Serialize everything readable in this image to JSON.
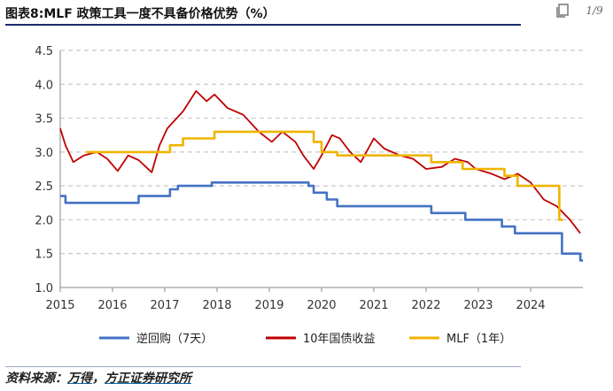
{
  "header": {
    "title": "图表8:MLF 政策工具一度不具备价格优势（%）"
  },
  "reader": {
    "page_indicator": "1/9"
  },
  "footer": {
    "source_label": "资料来源：",
    "source_wind": "万得",
    "source_sep": "，",
    "source_broker": "方正证券研究所"
  },
  "colors": {
    "reverse_repo": "#4472c4",
    "bond_10y": "#c00000",
    "mlf": "#f0b400",
    "grid": "#c8c8c8",
    "title_rule": "#1a2c6b"
  },
  "chart_data": {
    "type": "line",
    "title": "",
    "xlabel": "",
    "ylabel": "",
    "xlim": [
      2015.0,
      2025.0
    ],
    "ylim": [
      1.0,
      4.5
    ],
    "yticks": [
      1.0,
      1.5,
      2.0,
      2.5,
      3.0,
      3.5,
      4.0,
      4.5
    ],
    "ytick_labels": [
      "1.0",
      "1.5",
      "2.0",
      "2.5",
      "3.0",
      "3.5",
      "4.0",
      "4.5"
    ],
    "xticks": [
      2015,
      2016,
      2017,
      2018,
      2019,
      2020,
      2021,
      2022,
      2023,
      2024
    ],
    "xtick_labels": [
      "2015",
      "2016",
      "2017",
      "2018",
      "2019",
      "2020",
      "2021",
      "2022",
      "2023",
      "2024"
    ],
    "grid": "horizontal dashed",
    "legend": "bottom",
    "series": [
      {
        "name": "逆回购（7天）",
        "step": true,
        "x": [
          2015.0,
          2015.1,
          2016.4,
          2016.5,
          2017.1,
          2017.25,
          2017.9,
          2019.0,
          2019.75,
          2019.85,
          2020.1,
          2020.3,
          2022.1,
          2022.75,
          2023.45,
          2023.7,
          2024.1,
          2024.6,
          2024.95
        ],
        "values": [
          2.35,
          2.25,
          2.25,
          2.35,
          2.45,
          2.5,
          2.55,
          2.55,
          2.5,
          2.4,
          2.3,
          2.2,
          2.1,
          2.0,
          1.9,
          1.8,
          1.8,
          1.5,
          1.4
        ]
      },
      {
        "name": "10年国债收益",
        "step": false,
        "x": [
          2015.0,
          2015.1,
          2015.25,
          2015.45,
          2015.7,
          2015.9,
          2016.1,
          2016.3,
          2016.5,
          2016.75,
          2016.9,
          2017.05,
          2017.35,
          2017.6,
          2017.8,
          2017.95,
          2018.2,
          2018.5,
          2018.8,
          2019.05,
          2019.25,
          2019.5,
          2019.65,
          2019.85,
          2020.0,
          2020.2,
          2020.35,
          2020.55,
          2020.75,
          2021.0,
          2021.2,
          2021.5,
          2021.75,
          2022.0,
          2022.3,
          2022.55,
          2022.8,
          2022.95,
          2023.25,
          2023.5,
          2023.75,
          2024.0,
          2024.25,
          2024.5,
          2024.75,
          2024.95
        ],
        "values": [
          3.35,
          3.1,
          2.85,
          2.95,
          3.0,
          2.9,
          2.72,
          2.95,
          2.88,
          2.7,
          3.1,
          3.35,
          3.6,
          3.9,
          3.75,
          3.85,
          3.65,
          3.55,
          3.3,
          3.15,
          3.3,
          3.15,
          2.95,
          2.75,
          2.95,
          3.25,
          3.2,
          3.0,
          2.85,
          3.2,
          3.05,
          2.95,
          2.9,
          2.75,
          2.78,
          2.9,
          2.85,
          2.75,
          2.68,
          2.6,
          2.68,
          2.55,
          2.3,
          2.2,
          2.0,
          1.8
        ]
      },
      {
        "name": "MLF（1年）",
        "step": true,
        "x": [
          2015.5,
          2016.4,
          2017.1,
          2017.35,
          2017.95,
          2018.05,
          2019.7,
          2019.85,
          2020.0,
          2020.3,
          2022.1,
          2022.7,
          2023.5,
          2023.75,
          2024.0
        ],
        "values": [
          3.0,
          3.0,
          3.1,
          3.2,
          3.3,
          3.3,
          3.3,
          3.15,
          3.0,
          2.95,
          2.85,
          2.75,
          2.65,
          2.5,
          2.5
        ],
        "end_x": 2024.55,
        "end_value": 2.0
      }
    ]
  }
}
